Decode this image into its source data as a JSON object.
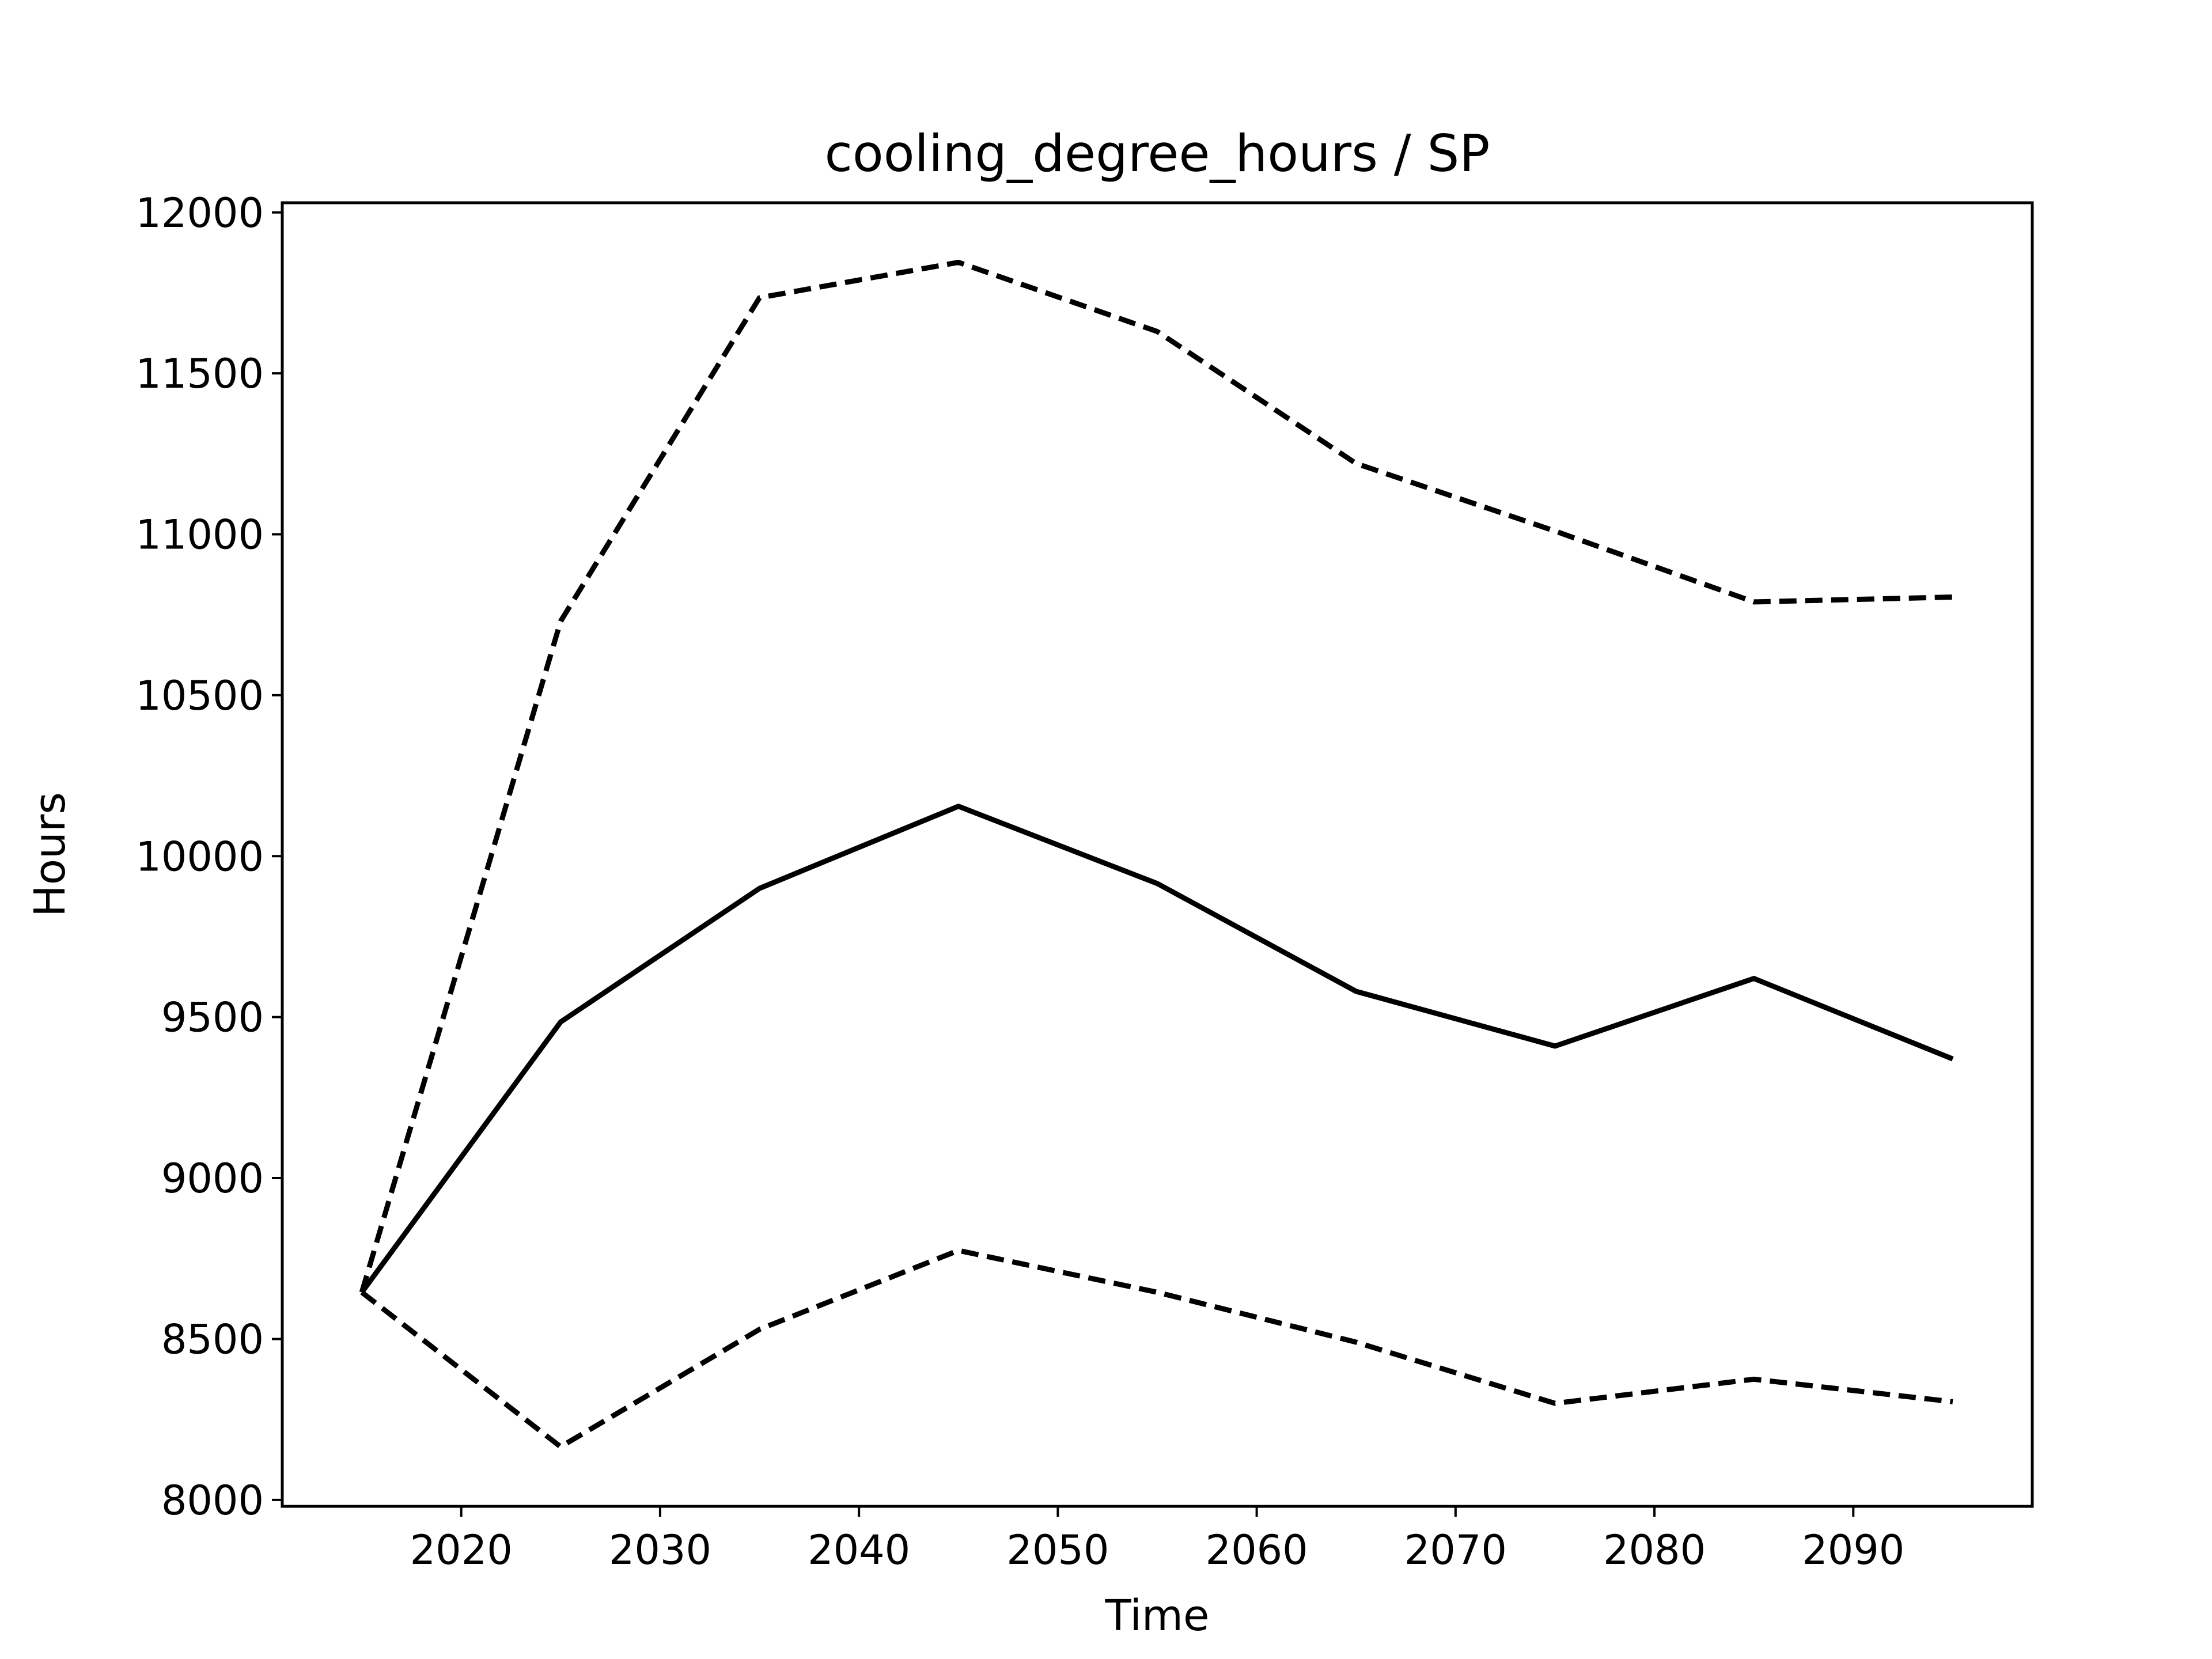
{
  "chart_data": {
    "type": "line",
    "title": "cooling_degree_hours / SP",
    "xlabel": "Time",
    "ylabel": "Hours",
    "xlim": [
      2011,
      2099
    ],
    "ylim": [
      7980,
      12030
    ],
    "xticks": [
      2020,
      2030,
      2040,
      2050,
      2060,
      2070,
      2080,
      2090
    ],
    "yticks": [
      8000,
      8500,
      9000,
      9500,
      10000,
      10500,
      11000,
      11500,
      12000
    ],
    "grid": false,
    "x": [
      2015,
      2025,
      2035,
      2045,
      2055,
      2065,
      2075,
      2085,
      2095
    ],
    "series": [
      {
        "style": "solid",
        "color": "#000000",
        "values": [
          8645,
          9485,
          9900,
          10155,
          9915,
          9580,
          9410,
          9620,
          9370
        ]
      },
      {
        "style": "dashed",
        "color": "#000000",
        "values": [
          8645,
          10730,
          11735,
          11845,
          11630,
          11220,
          11010,
          10790,
          10805
        ]
      },
      {
        "style": "dashed",
        "color": "#000000",
        "values": [
          8645,
          8165,
          8530,
          8775,
          8645,
          8490,
          8300,
          8375,
          8305
        ]
      }
    ]
  }
}
